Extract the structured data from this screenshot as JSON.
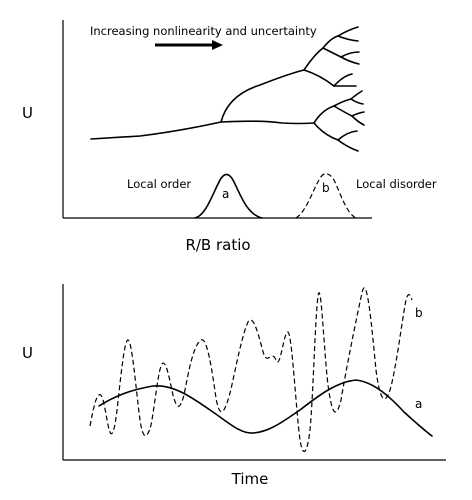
{
  "top_panel": {
    "annotation": "Increasing nonlinearity and uncertainty",
    "y_label": "U",
    "x_label": "R/B ratio",
    "left_label": "Local order",
    "right_label": "Local disorder",
    "peak_a_label": "a",
    "peak_b_label": "b"
  },
  "bottom_panel": {
    "y_label": "U",
    "x_label": "Time",
    "series_a_label": "a",
    "series_b_label": "b"
  }
}
